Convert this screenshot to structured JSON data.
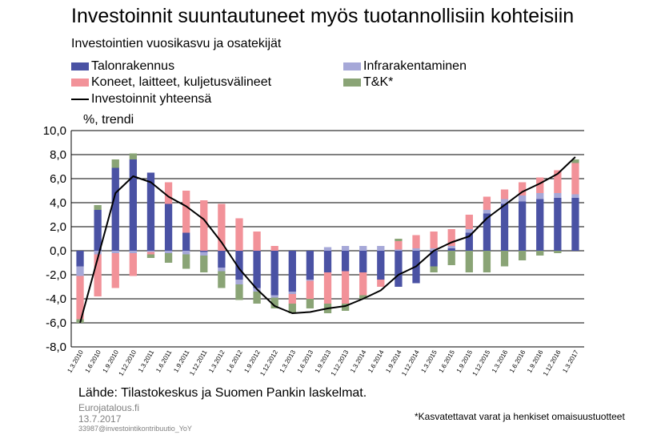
{
  "title": "Investoinnit suuntautuneet myös tuotannollisiin kohteisiin",
  "subtitle": "Investointien vuosikasvu ja osatekijät",
  "unit_label": "%, trendi",
  "source": "Lähde: Tilastokeskus ja Suomen Pankin laskelmat.",
  "publisher": "Eurojatalous.fi",
  "date": "13.7.2017",
  "code": "33987@investointikontribuutio_YoY",
  "footnote": "*Kasvatettavat  varat  ja henkiset omaisuustuotteet",
  "legend": [
    {
      "label": "Talonrakennus",
      "color": "#4a52a4"
    },
    {
      "label": "Infrarakentaminen",
      "color": "#a6a8d8"
    },
    {
      "label": "Koneet, laitteet, kuljetusvälineet",
      "color": "#f29299"
    },
    {
      "label": "T&K*",
      "color": "#8aa476"
    },
    {
      "label": "Investoinnit yhteensä",
      "color": "#000000"
    }
  ],
  "chart_data": {
    "type": "bar",
    "stacked": true,
    "ylim": [
      -8,
      10
    ],
    "yticks": [
      "-8,0",
      "-6,0",
      "-4,0",
      "-2,0",
      "0,0",
      "2,0",
      "4,0",
      "6,0",
      "8,0",
      "10,0"
    ],
    "grid": "horizontal",
    "categories": [
      "1.3.2010",
      "1.6.2010",
      "1.9.2010",
      "1.12.2010",
      "1.3.2011",
      "1.6.2011",
      "1.9.2011",
      "1.12.2011",
      "1.3.2012",
      "1.6.2012",
      "1.9.2012",
      "1.12.2012",
      "1.3.2013",
      "1.6.2013",
      "1.9.2013",
      "1.12.2013",
      "1.3.2014",
      "1.6.2014",
      "1.9.2014",
      "1.12.2014",
      "1.3.2015",
      "1.6.2015",
      "1.9.2015",
      "1.12.2015",
      "1.3.2016",
      "1.6.2016",
      "1.9.2016",
      "1.12.2016",
      "1.3.2017"
    ],
    "series": [
      {
        "name": "Talonrakennus",
        "type": "bar",
        "color": "#4a52a4",
        "values": [
          -1.3,
          3.4,
          6.9,
          7.6,
          6.5,
          3.9,
          1.5,
          -0.1,
          -1.4,
          -2.4,
          -3.1,
          -3.7,
          -3.4,
          -2.4,
          -1.8,
          -1.7,
          -1.8,
          -2.4,
          -3.0,
          -2.7,
          -1.3,
          0.2,
          1.5,
          3.1,
          3.9,
          4.1,
          4.3,
          4.4,
          4.4
        ]
      },
      {
        "name": "Infrarakentaminen",
        "type": "bar",
        "color": "#a6a8d8",
        "values": [
          -0.8,
          -0.3,
          -0.2,
          -0.2,
          -0.1,
          -0.2,
          -0.3,
          -0.3,
          -0.3,
          -0.4,
          -0.3,
          -0.2,
          -0.2,
          -0.1,
          0.3,
          0.4,
          0.4,
          0.4,
          0.1,
          0.2,
          0.2,
          0.2,
          0.3,
          0.3,
          0.4,
          0.5,
          0.5,
          0.4,
          0.3
        ]
      },
      {
        "name": "Koneet, laitteet, kuljetusvälineet",
        "type": "bar",
        "color": "#f29299",
        "values": [
          -3.6,
          -3.5,
          -2.9,
          -1.9,
          -0.2,
          1.8,
          3.5,
          4.2,
          3.9,
          2.7,
          1.6,
          0.4,
          -0.8,
          -1.5,
          -2.6,
          -2.7,
          -1.9,
          -0.6,
          0.7,
          1.1,
          1.4,
          1.4,
          1.2,
          1.1,
          0.8,
          1.1,
          1.3,
          1.9,
          2.6
        ]
      },
      {
        "name": "T&K*",
        "type": "bar",
        "color": "#8aa476",
        "values": [
          -0.3,
          0.4,
          0.7,
          0.5,
          -0.3,
          -0.8,
          -1.2,
          -1.4,
          -1.4,
          -1.3,
          -1.0,
          -0.9,
          -0.8,
          -0.8,
          -0.8,
          -0.6,
          -0.3,
          0.0,
          0.2,
          0.0,
          -0.5,
          -1.2,
          -1.8,
          -1.8,
          -1.3,
          -0.8,
          -0.4,
          -0.2,
          0.3
        ]
      },
      {
        "name": "Investoinnit yhteensä",
        "type": "line",
        "color": "#000000",
        "values": [
          -6.0,
          -0.6,
          4.8,
          6.2,
          5.7,
          4.5,
          3.7,
          2.6,
          0.7,
          -1.5,
          -3.2,
          -4.6,
          -5.2,
          -5.1,
          -4.8,
          -4.6,
          -4.0,
          -3.3,
          -2.0,
          -1.3,
          0.0,
          0.7,
          1.2,
          2.7,
          3.8,
          4.9,
          5.6,
          6.4,
          7.8
        ]
      }
    ]
  }
}
